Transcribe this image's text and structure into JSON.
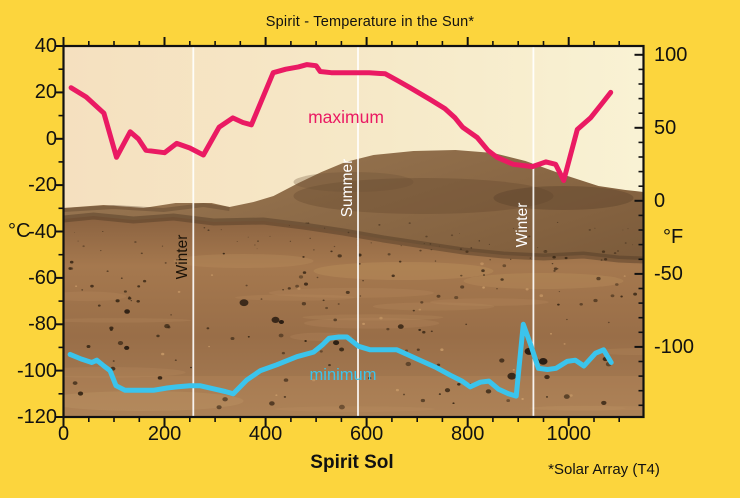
{
  "title": "Spirit - Temperature in the Sun*",
  "footnote": "*Solar Array (T4)",
  "colors": {
    "background": "#fcd53d",
    "max_line": "#ea1a63",
    "min_line": "#3bc4ec",
    "axis": "#111111",
    "season_line": "#ffffff"
  },
  "axes": {
    "x": {
      "label": "Spirit Sol",
      "ticks": [
        0,
        200,
        400,
        600,
        800,
        1000
      ],
      "minor_step": 50
    },
    "y_left": {
      "unit": "°C",
      "ticks": [
        40,
        20,
        0,
        -20,
        -40,
        -60,
        -80,
        -100,
        -120
      ],
      "minor_step": 10
    },
    "y_right": {
      "unit": "°F",
      "ticks": [
        100,
        50,
        0,
        -50,
        -100
      ],
      "minor_step": 10
    }
  },
  "annotations": {
    "max_label": "maximum",
    "min_label": "minimum",
    "seasons": [
      {
        "label": "Winter",
        "sol": 257,
        "text_color": "#1a1208"
      },
      {
        "label": "Summer",
        "sol": 583,
        "text_color": "#ffffff"
      },
      {
        "label": "Winter",
        "sol": 930,
        "text_color": "#ffffff"
      }
    ]
  },
  "chart_data": {
    "type": "line",
    "title": "Spirit - Temperature in the Sun*",
    "xlabel": "Spirit Sol",
    "ylabel_left": "°C",
    "ylabel_right": "°F",
    "xlim": [
      0,
      1148
    ],
    "ylim_c": [
      -120,
      40
    ],
    "ylim_f": [
      -148,
      106
    ],
    "grid": false,
    "background": "Mars surface panorama photographed by the Spirit rover",
    "season_markers": [
      {
        "label": "Winter",
        "sol": 257
      },
      {
        "label": "Summer",
        "sol": 583
      },
      {
        "label": "Winter",
        "sol": 930
      }
    ],
    "series": [
      {
        "name": "maximum",
        "color": "#ea1a63",
        "points": [
          [
            15,
            22
          ],
          [
            45,
            18
          ],
          [
            80,
            11
          ],
          [
            105,
            -8
          ],
          [
            132,
            3
          ],
          [
            148,
            0
          ],
          [
            163,
            -5
          ],
          [
            200,
            -6
          ],
          [
            224,
            -2
          ],
          [
            250,
            -4
          ],
          [
            277,
            -7
          ],
          [
            308,
            5
          ],
          [
            335,
            9
          ],
          [
            355,
            7
          ],
          [
            372,
            6
          ],
          [
            415,
            28.5
          ],
          [
            440,
            30
          ],
          [
            465,
            31
          ],
          [
            482,
            32
          ],
          [
            500,
            31.5
          ],
          [
            508,
            29
          ],
          [
            530,
            28.5
          ],
          [
            570,
            28.5
          ],
          [
            605,
            28.5
          ],
          [
            637,
            28
          ],
          [
            662,
            25
          ],
          [
            686,
            22
          ],
          [
            725,
            17
          ],
          [
            755,
            13
          ],
          [
            775,
            9
          ],
          [
            790,
            5
          ],
          [
            819,
            0.5
          ],
          [
            840,
            -5
          ],
          [
            858,
            -8
          ],
          [
            890,
            -11
          ],
          [
            928,
            -12
          ],
          [
            955,
            -10
          ],
          [
            974,
            -11
          ],
          [
            990,
            -18
          ],
          [
            1017,
            4
          ],
          [
            1043,
            9
          ],
          [
            1065,
            15
          ],
          [
            1083,
            20
          ]
        ]
      },
      {
        "name": "minimum",
        "color": "#3bc4ec",
        "points": [
          [
            13,
            -93
          ],
          [
            35,
            -95
          ],
          [
            56,
            -96.5
          ],
          [
            66,
            -95.5
          ],
          [
            80,
            -98
          ],
          [
            92,
            -100
          ],
          [
            104,
            -106.5
          ],
          [
            122,
            -108.5
          ],
          [
            150,
            -108.5
          ],
          [
            178,
            -108.5
          ],
          [
            205,
            -107.5
          ],
          [
            224,
            -107
          ],
          [
            250,
            -106.5
          ],
          [
            270,
            -106.5
          ],
          [
            300,
            -108
          ],
          [
            320,
            -109
          ],
          [
            336,
            -110
          ],
          [
            363,
            -104
          ],
          [
            390,
            -100
          ],
          [
            422,
            -97.5
          ],
          [
            462,
            -94
          ],
          [
            495,
            -92
          ],
          [
            512,
            -89
          ],
          [
            526,
            -86
          ],
          [
            545,
            -85.5
          ],
          [
            561,
            -85.5
          ],
          [
            584,
            -89.5
          ],
          [
            607,
            -91
          ],
          [
            635,
            -91
          ],
          [
            660,
            -91
          ],
          [
            700,
            -95
          ],
          [
            736,
            -98.5
          ],
          [
            766,
            -102
          ],
          [
            789,
            -104.5
          ],
          [
            805,
            -107
          ],
          [
            825,
            -105
          ],
          [
            842,
            -104.5
          ],
          [
            861,
            -108
          ],
          [
            881,
            -110
          ],
          [
            896,
            -111
          ],
          [
            910,
            -80
          ],
          [
            925,
            -89
          ],
          [
            940,
            -99
          ],
          [
            958,
            -99.5
          ],
          [
            975,
            -99
          ],
          [
            997,
            -96
          ],
          [
            1013,
            -95.5
          ],
          [
            1030,
            -98
          ],
          [
            1053,
            -92.5
          ],
          [
            1069,
            -91
          ],
          [
            1084,
            -96.5
          ]
        ]
      }
    ]
  }
}
